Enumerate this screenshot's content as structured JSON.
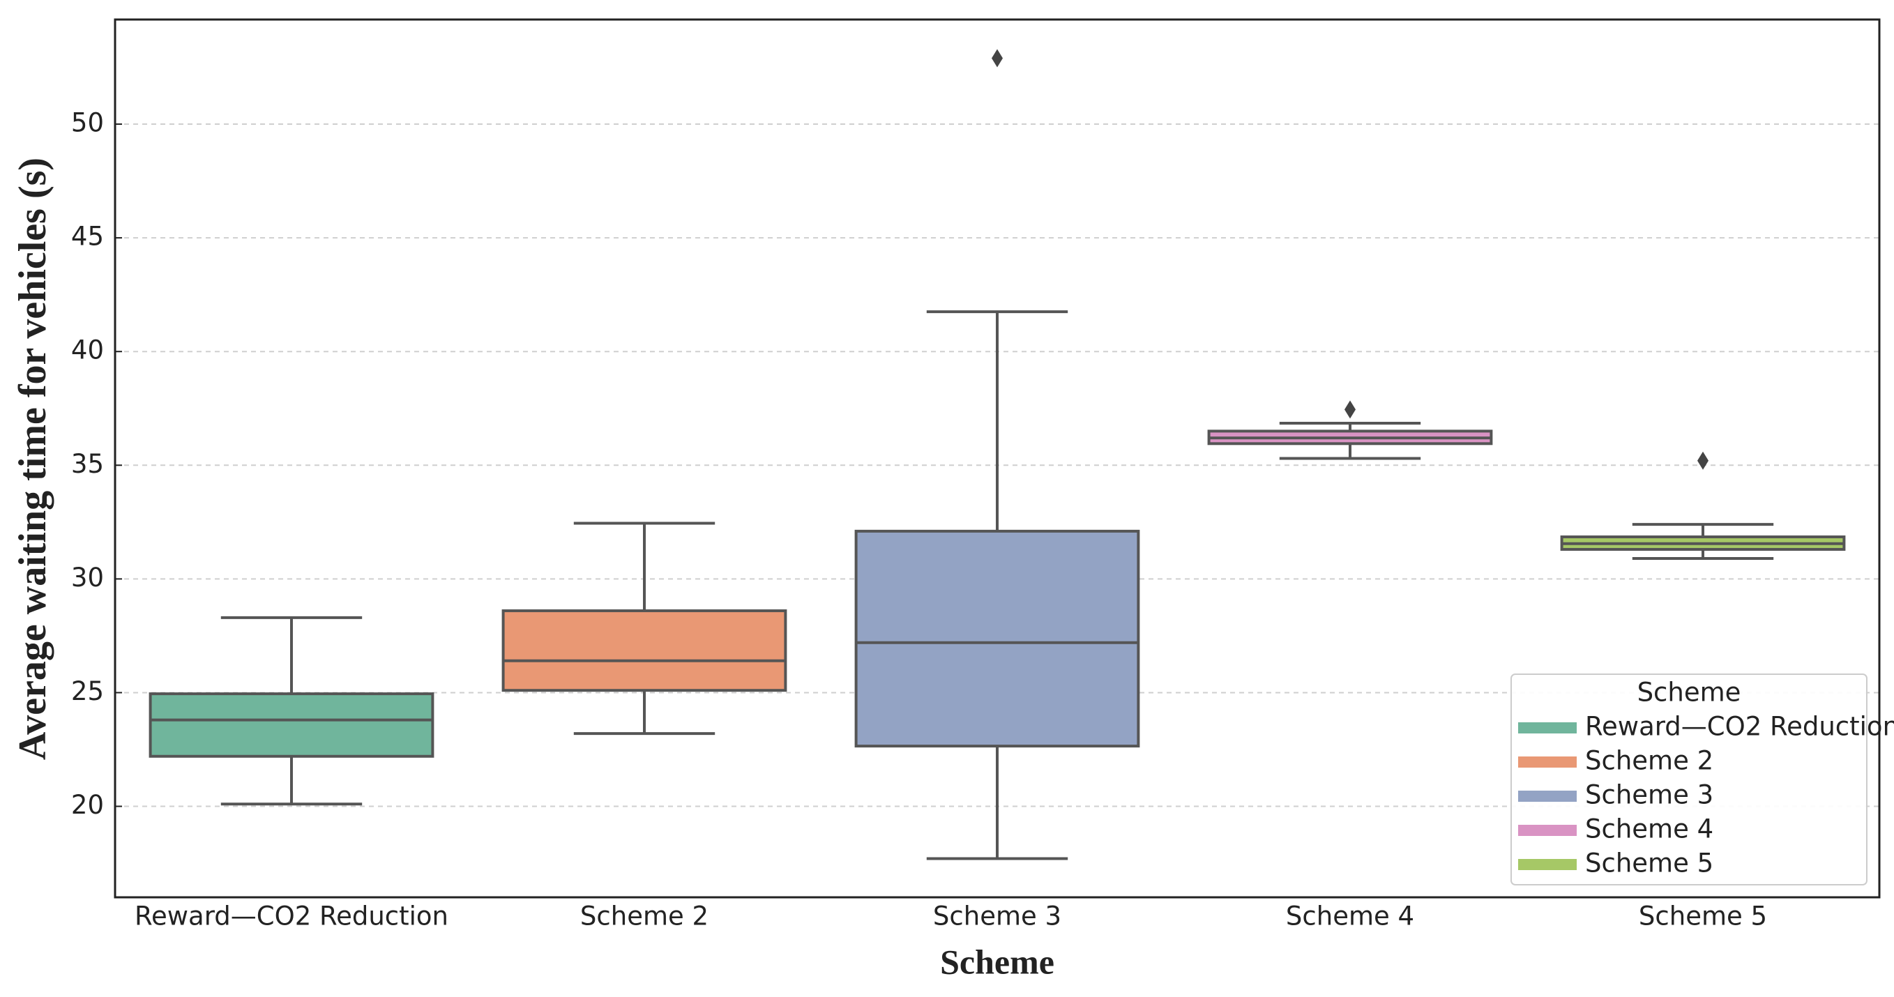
{
  "chart_data": {
    "type": "box",
    "xlabel": "Scheme",
    "ylabel": "Average waiting time for vehicles (s)",
    "categories": [
      "Reward—CO2 Reduction",
      "Scheme 2",
      "Scheme 3",
      "Scheme 4",
      "Scheme 5"
    ],
    "boxes": [
      {
        "color": "#70b59c",
        "whisker_low": 20.1,
        "q1": 22.2,
        "median": 23.8,
        "q3": 24.95,
        "whisker_high": 28.3,
        "outliers": []
      },
      {
        "color": "#e99874",
        "whisker_low": 23.2,
        "q1": 25.1,
        "median": 26.4,
        "q3": 28.6,
        "whisker_high": 32.45,
        "outliers": []
      },
      {
        "color": "#93a3c4",
        "whisker_low": 17.7,
        "q1": 22.65,
        "median": 27.2,
        "q3": 32.1,
        "whisker_high": 41.75,
        "outliers": [
          52.9
        ]
      },
      {
        "color": "#d993c3",
        "whisker_low": 35.3,
        "q1": 35.95,
        "median": 36.2,
        "q3": 36.5,
        "whisker_high": 36.85,
        "outliers": [
          37.45
        ]
      },
      {
        "color": "#a6c866",
        "whisker_low": 30.9,
        "q1": 31.3,
        "median": 31.55,
        "q3": 31.85,
        "whisker_high": 32.4,
        "outliers": [
          35.2
        ]
      }
    ],
    "ylim": [
      16,
      54.6
    ],
    "yticks": [
      20,
      25,
      30,
      35,
      40,
      45,
      50
    ],
    "grid": true,
    "legend_title": "Scheme",
    "legend": "lower right"
  }
}
